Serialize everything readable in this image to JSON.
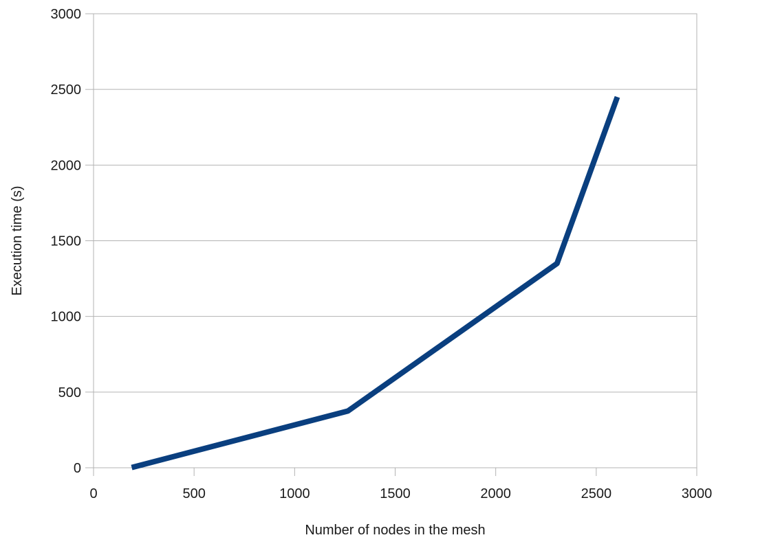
{
  "chart_data": {
    "type": "line",
    "xlabel": "Number of nodes in the mesh",
    "ylabel": "Execution time (s)",
    "xlim": [
      0,
      3000
    ],
    "ylim": [
      0,
      3000
    ],
    "xticks": [
      0,
      500,
      1000,
      1500,
      2000,
      2500,
      3000
    ],
    "yticks": [
      0,
      500,
      1000,
      1500,
      2000,
      2500,
      3000
    ],
    "grid": "horizontal",
    "legend": "none",
    "series": [
      {
        "color": "#0a3f7f",
        "points": [
          {
            "x": 190,
            "y": 2
          },
          {
            "x": 1265,
            "y": 375
          },
          {
            "x": 2305,
            "y": 1350
          },
          {
            "x": 2605,
            "y": 2450
          }
        ]
      }
    ]
  }
}
